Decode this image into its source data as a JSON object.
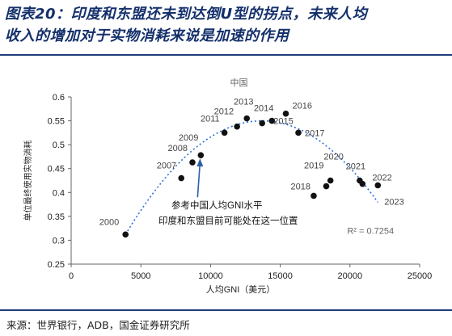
{
  "figure": {
    "title_line1": "图表20：印度和东盟还未到达倒U型的拐点，未来人均",
    "title_line2": "收入的增加对于实物消耗来说是加速的作用",
    "source": "来源：世界银行，ADB，国金证券研究所"
  },
  "chart_data": {
    "type": "scatter",
    "title": "中国",
    "xlabel": "人均GNI（美元）",
    "ylabel": "单位最终使用实物消耗",
    "xlim": [
      0,
      25000
    ],
    "ylim": [
      0.25,
      0.6
    ],
    "xticks": [
      0,
      5000,
      10000,
      15000,
      20000,
      25000
    ],
    "yticks": [
      0.25,
      0.3,
      0.35,
      0.4,
      0.45,
      0.5,
      0.55,
      0.6
    ],
    "ytick_labels": [
      "0.25",
      "0.3",
      "0.35",
      "0.4",
      "0.45",
      "0.5",
      "0.55",
      "0.6"
    ],
    "points": [
      {
        "label": "2000",
        "x": 3900,
        "y": 0.312
      },
      {
        "label": "2007",
        "x": 7900,
        "y": 0.43
      },
      {
        "label": "2008",
        "x": 8700,
        "y": 0.463
      },
      {
        "label": "2009",
        "x": 9300,
        "y": 0.478
      },
      {
        "label": "2011",
        "x": 11000,
        "y": 0.525
      },
      {
        "label": "2012",
        "x": 11900,
        "y": 0.538
      },
      {
        "label": "2013",
        "x": 12600,
        "y": 0.555
      },
      {
        "label": "2014",
        "x": 13700,
        "y": 0.545
      },
      {
        "label": "2015",
        "x": 14400,
        "y": 0.55
      },
      {
        "label": "2016",
        "x": 15400,
        "y": 0.565
      },
      {
        "label": "2017",
        "x": 16300,
        "y": 0.525
      },
      {
        "label": "2018",
        "x": 17400,
        "y": 0.393
      },
      {
        "label": "2019",
        "x": 18300,
        "y": 0.413
      },
      {
        "label": "2020",
        "x": 18600,
        "y": 0.425
      },
      {
        "label": "2021",
        "x": 20700,
        "y": 0.425
      },
      {
        "label": "2022",
        "x": 20900,
        "y": 0.418
      },
      {
        "label": "2023",
        "x": 22000,
        "y": 0.415
      }
    ],
    "trendline": {
      "type": "polynomial",
      "r_squared_label": "R² = 0.7254",
      "x_range": [
        3900,
        22000
      ],
      "peak_x": 13700,
      "peak_y": 0.55,
      "start_y": 0.312
    },
    "annotation": {
      "text_line1": "参考中国人均GNI水平",
      "text_line2": "印度和东盟目前可能处在这一位置",
      "arrow_to": {
        "x": 9300,
        "y": 0.478
      }
    },
    "marker_color": "#111111",
    "trendline_color": "#2f6fd6",
    "grid": false
  }
}
